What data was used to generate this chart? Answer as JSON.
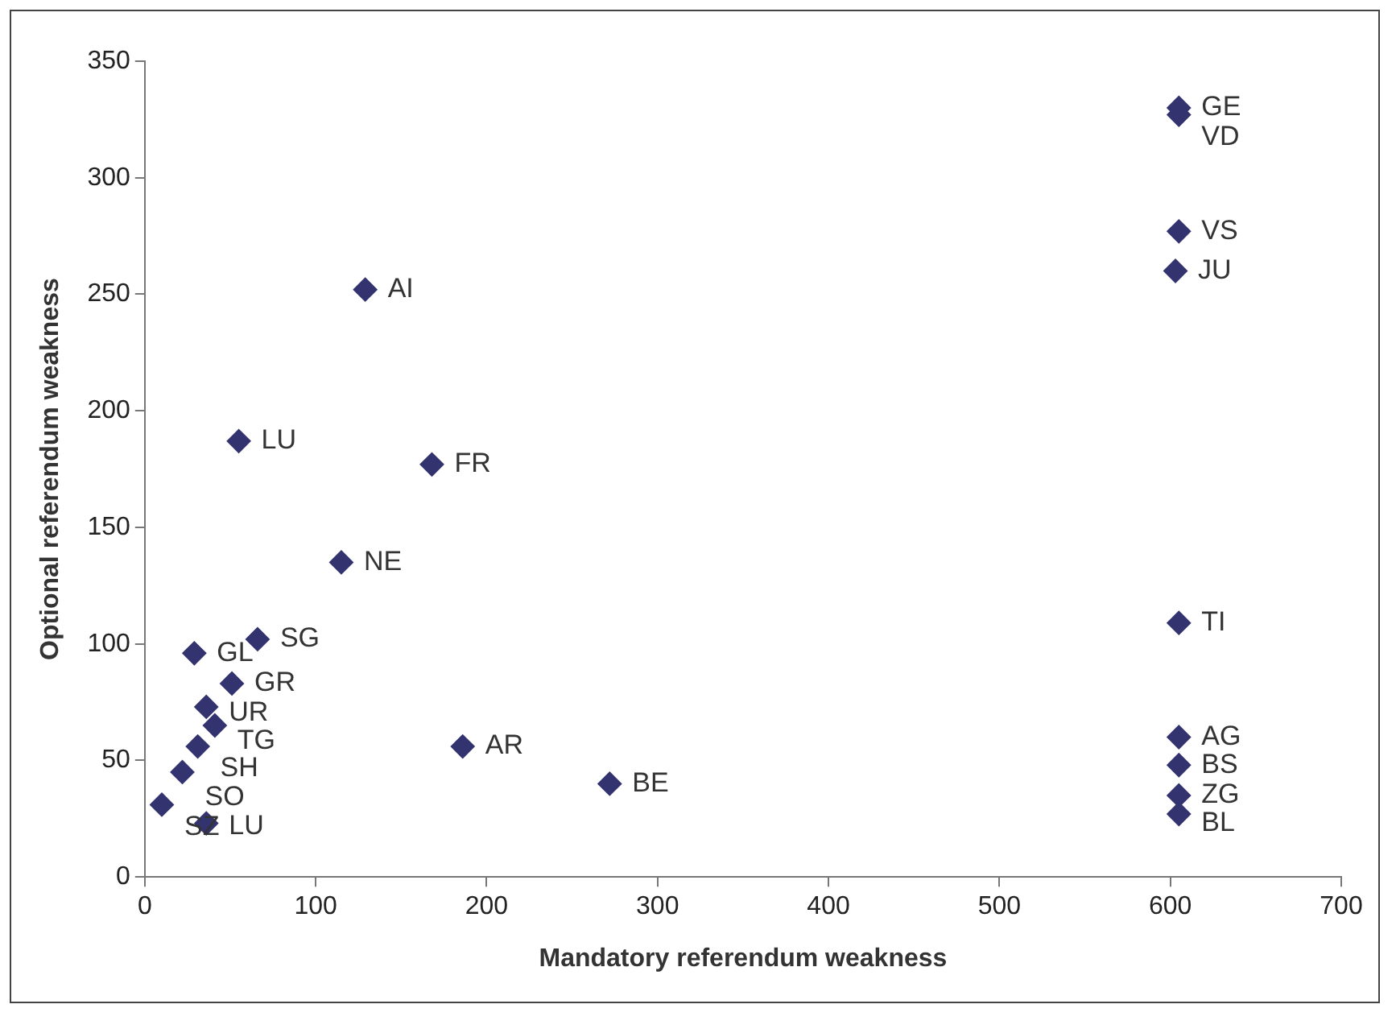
{
  "chart_data": {
    "type": "scatter",
    "xlabel": "Mandatory referendum weakness",
    "ylabel": "Optional referendum weakness",
    "x": [
      605,
      605,
      605,
      603,
      605,
      605,
      605,
      605,
      605,
      129,
      55,
      168,
      115,
      66,
      29,
      51,
      36,
      41,
      31,
      22,
      10,
      36,
      186,
      272
    ],
    "values": [
      330,
      327,
      277,
      260,
      109,
      60,
      48,
      35,
      27,
      252,
      187,
      177,
      135,
      102,
      96,
      83,
      73,
      65,
      56,
      45,
      31,
      23,
      56,
      40
    ],
    "color": "#333370",
    "marker": "diamond",
    "grid": false,
    "legend": false,
    "xlim": [
      0,
      700
    ],
    "xticks": [
      0,
      100,
      200,
      300,
      400,
      500,
      600,
      700
    ],
    "ylim": [
      0,
      350
    ],
    "yticks": [
      0,
      50,
      100,
      150,
      200,
      250,
      300,
      350
    ],
    "annotations": [
      {
        "text": "GE",
        "x": 605,
        "y": 330
      },
      {
        "text": "VD",
        "x": 605,
        "y": 327
      },
      {
        "text": "VS",
        "x": 605,
        "y": 277
      },
      {
        "text": "JU",
        "x": 603,
        "y": 260
      },
      {
        "text": "TI",
        "x": 605,
        "y": 109
      },
      {
        "text": "AG",
        "x": 605,
        "y": 60
      },
      {
        "text": "BS",
        "x": 605,
        "y": 48
      },
      {
        "text": "ZG",
        "x": 605,
        "y": 35
      },
      {
        "text": "BL",
        "x": 605,
        "y": 27
      },
      {
        "text": "AI",
        "x": 129,
        "y": 252
      },
      {
        "text": "LU",
        "x": 55,
        "y": 187
      },
      {
        "text": "FR",
        "x": 168,
        "y": 177
      },
      {
        "text": "NE",
        "x": 115,
        "y": 135
      },
      {
        "text": "SG",
        "x": 66,
        "y": 102
      },
      {
        "text": "GL",
        "x": 29,
        "y": 96
      },
      {
        "text": "GR",
        "x": 51,
        "y": 83
      },
      {
        "text": "UR",
        "x": 36,
        "y": 73
      },
      {
        "text": "TG",
        "x": 41,
        "y": 65
      },
      {
        "text": "SH",
        "x": 31,
        "y": 56
      },
      {
        "text": "SO",
        "x": 22,
        "y": 45
      },
      {
        "text": "SZ",
        "x": 10,
        "y": 31
      },
      {
        "text": "LU",
        "x": 36,
        "y": 23
      },
      {
        "text": "AR",
        "x": 186,
        "y": 56
      },
      {
        "text": "BE",
        "x": 272,
        "y": 40
      }
    ]
  }
}
